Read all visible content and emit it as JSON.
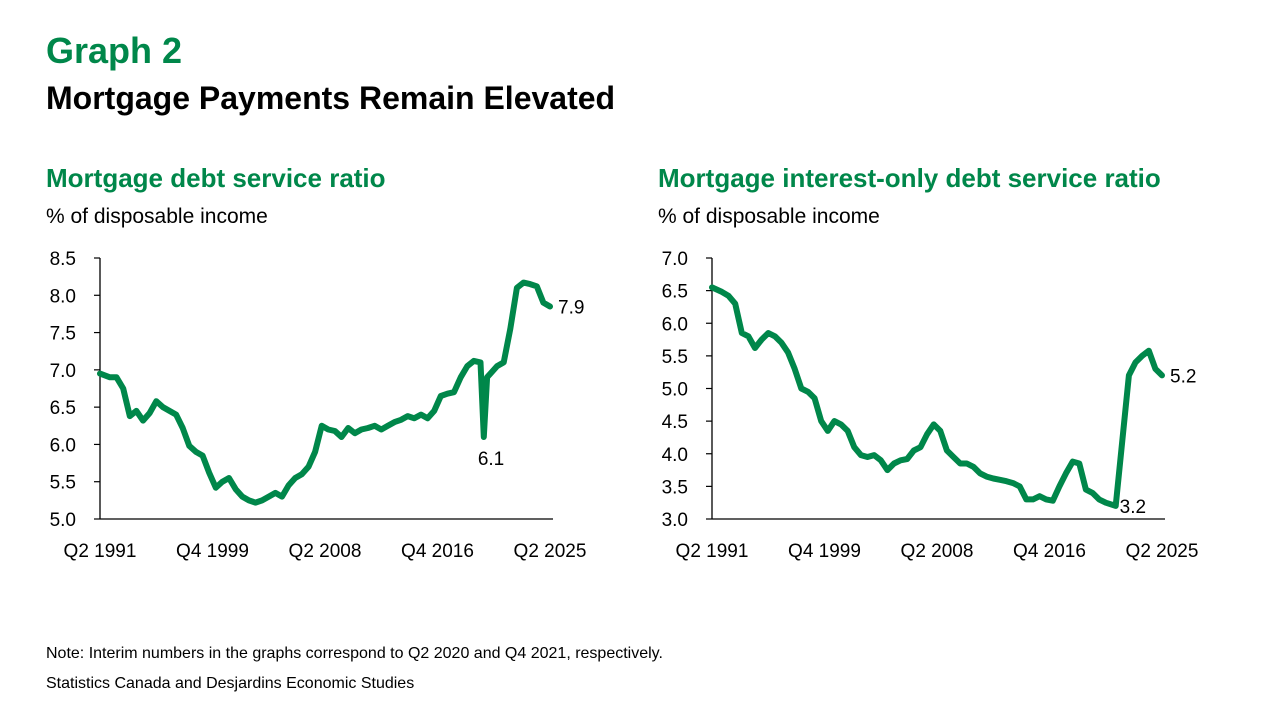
{
  "graph_label": "Graph 2",
  "title": "Mortgage Payments Remain Elevated",
  "note": "Note: Interim numbers in the graphs correspond to Q2 2020 and Q4 2021, respectively.",
  "source": "Statistics Canada and Desjardins Economic Studies",
  "colors": {
    "accent": "#00874a",
    "line": "#00874a",
    "axis": "#000000"
  },
  "chart_data": [
    {
      "type": "line",
      "title": "Mortgage debt service ratio",
      "ylabel": "% of disposable income",
      "xlabel": "",
      "ylim": [
        5.0,
        8.5
      ],
      "yticks": [
        "5.0",
        "5.5",
        "6.0",
        "6.5",
        "7.0",
        "7.5",
        "8.0",
        "8.5"
      ],
      "xticks": [
        "Q2 1991",
        "Q4 1999",
        "Q2 2008",
        "Q4 2016",
        "Q2 2025"
      ],
      "grid": false,
      "legend": "none",
      "series": [
        {
          "name": "Mortgage debt service ratio",
          "x": [
            "1991Q2",
            "1992Q1",
            "1992Q3",
            "1993Q1",
            "1993Q3",
            "1994Q1",
            "1994Q3",
            "1995Q1",
            "1995Q3",
            "1996Q1",
            "1996Q3",
            "1997Q1",
            "1997Q3",
            "1998Q1",
            "1998Q3",
            "1999Q1",
            "1999Q3",
            "2000Q1",
            "2000Q3",
            "2001Q1",
            "2001Q3",
            "2002Q1",
            "2002Q3",
            "2003Q1",
            "2003Q3",
            "2004Q1",
            "2004Q3",
            "2005Q1",
            "2005Q3",
            "2006Q1",
            "2006Q3",
            "2007Q1",
            "2007Q3",
            "2008Q1",
            "2008Q3",
            "2009Q1",
            "2009Q3",
            "2010Q1",
            "2010Q3",
            "2011Q1",
            "2011Q3",
            "2012Q1",
            "2012Q3",
            "2013Q1",
            "2013Q3",
            "2014Q1",
            "2014Q3",
            "2015Q1",
            "2015Q3",
            "2016Q1",
            "2016Q3",
            "2017Q1",
            "2017Q3",
            "2018Q1",
            "2018Q3",
            "2019Q1",
            "2019Q3",
            "2020Q1",
            "2020Q2",
            "2020Q3",
            "2020Q4",
            "2021Q2",
            "2021Q4",
            "2022Q2",
            "2022Q4",
            "2023Q2",
            "2023Q4",
            "2024Q2",
            "2024Q4",
            "2025Q2"
          ],
          "values": [
            6.95,
            6.9,
            6.9,
            6.75,
            6.38,
            6.45,
            6.32,
            6.42,
            6.58,
            6.5,
            6.45,
            6.4,
            6.22,
            5.98,
            5.9,
            5.85,
            5.62,
            5.42,
            5.5,
            5.55,
            5.4,
            5.3,
            5.25,
            5.22,
            5.25,
            5.3,
            5.35,
            5.3,
            5.45,
            5.55,
            5.6,
            5.7,
            5.9,
            6.25,
            6.2,
            6.18,
            6.1,
            6.22,
            6.15,
            6.2,
            6.22,
            6.25,
            6.2,
            6.25,
            6.3,
            6.33,
            6.38,
            6.35,
            6.4,
            6.35,
            6.45,
            6.65,
            6.68,
            6.7,
            6.9,
            7.05,
            7.12,
            7.1,
            6.1,
            6.9,
            6.95,
            7.05,
            7.1,
            7.55,
            8.1,
            8.17,
            8.15,
            8.12,
            7.9,
            7.85
          ]
        }
      ],
      "annotations": [
        {
          "text": "6.1",
          "x": "2020Q2",
          "y": 6.1
        },
        {
          "text": "7.9",
          "x": "2025Q2",
          "y": 7.85
        }
      ]
    },
    {
      "type": "line",
      "title": "Mortgage interest-only debt service ratio",
      "ylabel": "% of disposable income",
      "xlabel": "",
      "ylim": [
        3.0,
        7.0
      ],
      "yticks": [
        "3.0",
        "3.5",
        "4.0",
        "4.5",
        "5.0",
        "5.5",
        "6.0",
        "6.5",
        "7.0"
      ],
      "xticks": [
        "Q2 1991",
        "Q4 1999",
        "Q2 2008",
        "Q4 2016",
        "Q2 2025"
      ],
      "grid": false,
      "legend": "none",
      "series": [
        {
          "name": "Mortgage interest-only debt service ratio",
          "x": [
            "1991Q2",
            "1992Q1",
            "1992Q3",
            "1993Q1",
            "1993Q3",
            "1994Q1",
            "1994Q3",
            "1995Q1",
            "1995Q3",
            "1996Q1",
            "1996Q3",
            "1997Q1",
            "1997Q3",
            "1998Q1",
            "1998Q3",
            "1999Q1",
            "1999Q3",
            "2000Q1",
            "2000Q3",
            "2001Q1",
            "2001Q3",
            "2002Q1",
            "2002Q3",
            "2003Q1",
            "2003Q3",
            "2004Q1",
            "2004Q3",
            "2005Q1",
            "2005Q3",
            "2006Q1",
            "2006Q3",
            "2007Q1",
            "2007Q3",
            "2008Q1",
            "2008Q3",
            "2009Q1",
            "2009Q3",
            "2010Q1",
            "2010Q3",
            "2011Q1",
            "2011Q3",
            "2012Q1",
            "2012Q3",
            "2013Q1",
            "2013Q3",
            "2014Q1",
            "2014Q3",
            "2015Q1",
            "2015Q3",
            "2016Q1",
            "2016Q3",
            "2017Q1",
            "2017Q3",
            "2018Q1",
            "2018Q3",
            "2019Q1",
            "2019Q3",
            "2020Q1",
            "2020Q3",
            "2021Q1",
            "2021Q4",
            "2022Q2",
            "2022Q4",
            "2023Q2",
            "2023Q4",
            "2024Q2",
            "2024Q4",
            "2025Q2"
          ],
          "values": [
            6.55,
            6.48,
            6.42,
            6.3,
            5.85,
            5.8,
            5.62,
            5.75,
            5.85,
            5.8,
            5.7,
            5.55,
            5.3,
            5.0,
            4.95,
            4.85,
            4.5,
            4.35,
            4.5,
            4.45,
            4.35,
            4.1,
            3.98,
            3.95,
            3.98,
            3.9,
            3.75,
            3.85,
            3.9,
            3.92,
            4.05,
            4.1,
            4.3,
            4.45,
            4.35,
            4.05,
            3.95,
            3.85,
            3.85,
            3.8,
            3.7,
            3.65,
            3.62,
            3.6,
            3.58,
            3.55,
            3.5,
            3.3,
            3.3,
            3.35,
            3.3,
            3.28,
            3.5,
            3.7,
            3.88,
            3.85,
            3.45,
            3.4,
            3.3,
            3.25,
            3.2,
            4.2,
            5.2,
            5.4,
            5.5,
            5.58,
            5.3,
            5.2
          ]
        }
      ],
      "annotations": [
        {
          "text": "3.2",
          "x": "2021Q4",
          "y": 3.2
        },
        {
          "text": "5.2",
          "x": "2025Q2",
          "y": 5.2
        }
      ]
    }
  ]
}
